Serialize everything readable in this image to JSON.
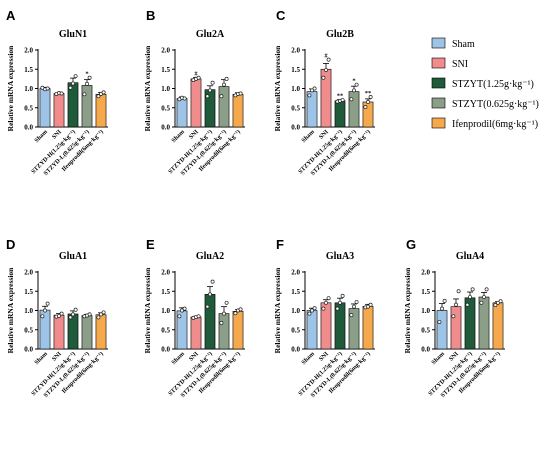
{
  "figure": {
    "groups": [
      "Sham",
      "SNI",
      "STZYD-H(1.25g·kg⁻¹)",
      "STZYD-L(0.625g·kg⁻¹)",
      "Ifenprodil(6mg·kg⁻¹)"
    ],
    "colors": [
      "#9dc3e6",
      "#f08c8c",
      "#1f5a3a",
      "#8a9e88",
      "#f6a94c"
    ],
    "legend": [
      {
        "label": "Sham",
        "color": "#9dc3e6"
      },
      {
        "label": "SNI",
        "color": "#f08c8c"
      },
      {
        "label": "STZYT(1.25g·kg⁻¹)",
        "color": "#1f5a3a"
      },
      {
        "label": "STZYT(0.625g·kg⁻¹)",
        "color": "#8a9e88"
      },
      {
        "label": "Ifenprodil(6mg·kg⁻¹)",
        "color": "#f6a94c"
      }
    ]
  },
  "chart_data": [
    {
      "type": "bar",
      "panel": "A",
      "title": "GluN1",
      "ylabel": "Relative mRNA expression",
      "ylim": [
        0,
        2.0
      ],
      "yticks": [
        "0.0",
        "0.5",
        "1.0",
        "1.5",
        "2.0"
      ],
      "values": [
        1.0,
        0.87,
        1.15,
        1.08,
        0.85
      ],
      "errors": [
        0.03,
        0.03,
        0.12,
        0.15,
        0.05
      ],
      "points": [
        [
          1.02,
          0.98,
          1.0
        ],
        [
          0.86,
          0.88,
          0.87
        ],
        [
          1.02,
          1.13,
          1.32
        ],
        [
          0.85,
          1.12,
          1.28
        ],
        [
          0.8,
          0.86,
          0.9
        ]
      ],
      "sig": [
        "",
        "",
        "",
        "*",
        ""
      ]
    },
    {
      "type": "bar",
      "panel": "B",
      "title": "Glu2A",
      "ylabel": "Relative mRNA expression",
      "ylim": [
        0,
        2.0
      ],
      "yticks": [
        "0.0",
        "0.5",
        "1.0",
        "1.5",
        "2.0"
      ],
      "values": [
        0.74,
        1.25,
        0.97,
        1.05,
        0.85
      ],
      "errors": [
        0.04,
        0.04,
        0.1,
        0.18,
        0.04
      ],
      "points": [
        [
          0.72,
          0.76,
          0.74
        ],
        [
          1.22,
          1.25,
          1.28
        ],
        [
          0.8,
          0.95,
          1.15
        ],
        [
          0.8,
          1.1,
          1.25
        ],
        [
          0.82,
          0.86,
          0.87
        ]
      ],
      "sig": [
        "",
        "#",
        "",
        "",
        ""
      ]
    },
    {
      "type": "bar",
      "panel": "C",
      "title": "Glu2B",
      "ylabel": "Relative mRNA expression",
      "ylim": [
        0,
        2.0
      ],
      "yticks": [
        "0.0",
        "0.5",
        "1.0",
        "1.5",
        "2.0"
      ],
      "values": [
        0.92,
        1.5,
        0.68,
        0.92,
        0.65
      ],
      "errors": [
        0.07,
        0.15,
        0.03,
        0.14,
        0.08
      ],
      "points": [
        [
          0.82,
          0.95,
          1.0
        ],
        [
          1.28,
          1.48,
          1.75
        ],
        [
          0.66,
          0.68,
          0.7
        ],
        [
          0.72,
          0.95,
          1.1
        ],
        [
          0.52,
          0.65,
          0.78
        ]
      ],
      "sig": [
        "",
        "#",
        "**",
        "*",
        "**"
      ]
    },
    {
      "type": "bar",
      "panel": "D",
      "title": "GluA1",
      "ylabel": "Relative mRNA expression",
      "ylim": [
        0,
        2.0
      ],
      "yticks": [
        "0.0",
        "0.5",
        "1.0",
        "1.5",
        "2.0"
      ],
      "values": [
        1.01,
        0.88,
        0.91,
        0.87,
        0.89
      ],
      "errors": [
        0.1,
        0.04,
        0.08,
        0.03,
        0.05
      ],
      "points": [
        [
          0.85,
          1.0,
          1.18
        ],
        [
          0.84,
          0.86,
          0.92
        ],
        [
          0.82,
          0.9,
          1.02
        ],
        [
          0.85,
          0.87,
          0.9
        ],
        [
          0.82,
          0.9,
          0.95
        ]
      ],
      "sig": [
        "",
        "",
        "",
        "",
        ""
      ]
    },
    {
      "type": "bar",
      "panel": "E",
      "title": "GluA2",
      "ylabel": "Relative mRNA expression",
      "ylim": [
        0,
        2.0
      ],
      "yticks": [
        "0.0",
        "0.5",
        "1.0",
        "1.5",
        "2.0"
      ],
      "values": [
        0.99,
        0.83,
        1.42,
        0.92,
        0.98
      ],
      "errors": [
        0.08,
        0.02,
        0.2,
        0.18,
        0.04
      ],
      "points": [
        [
          0.85,
          1.0,
          1.05
        ],
        [
          0.81,
          0.83,
          0.85
        ],
        [
          1.1,
          1.42,
          1.75
        ],
        [
          0.68,
          0.92,
          1.2
        ],
        [
          0.93,
          1.0,
          1.03
        ]
      ],
      "sig": [
        "",
        "",
        "",
        "",
        ""
      ]
    },
    {
      "type": "bar",
      "panel": "F",
      "title": "GluA3",
      "ylabel": "Relative mRNA expression",
      "ylim": [
        0,
        2.0
      ],
      "yticks": [
        "0.0",
        "0.5",
        "1.0",
        "1.5",
        "2.0"
      ],
      "values": [
        1.0,
        1.2,
        1.2,
        1.05,
        1.11
      ],
      "errors": [
        0.06,
        0.08,
        0.12,
        0.12,
        0.05
      ],
      "points": [
        [
          0.92,
          1.0,
          1.06
        ],
        [
          1.05,
          1.2,
          1.32
        ],
        [
          1.05,
          1.2,
          1.38
        ],
        [
          0.88,
          1.1,
          1.22
        ],
        [
          1.08,
          1.1,
          1.15
        ]
      ],
      "sig": [
        "",
        "",
        "",
        "",
        ""
      ]
    },
    {
      "type": "bar",
      "panel": "G",
      "title": "GluA4",
      "ylabel": "Relative mRNA expression",
      "ylim": [
        0,
        2.0
      ],
      "yticks": [
        "0.0",
        "0.5",
        "1.0",
        "1.5",
        "2.0"
      ],
      "values": [
        1.0,
        1.1,
        1.33,
        1.35,
        1.2
      ],
      "errors": [
        0.18,
        0.2,
        0.15,
        0.12,
        0.03
      ],
      "points": [
        [
          0.7,
          1.05,
          1.25
        ],
        [
          0.85,
          1.15,
          1.5
        ],
        [
          1.15,
          1.35,
          1.55
        ],
        [
          1.2,
          1.35,
          1.55
        ],
        [
          1.14,
          1.2,
          1.24
        ]
      ],
      "sig": [
        "",
        "",
        "",
        "",
        ""
      ]
    }
  ]
}
